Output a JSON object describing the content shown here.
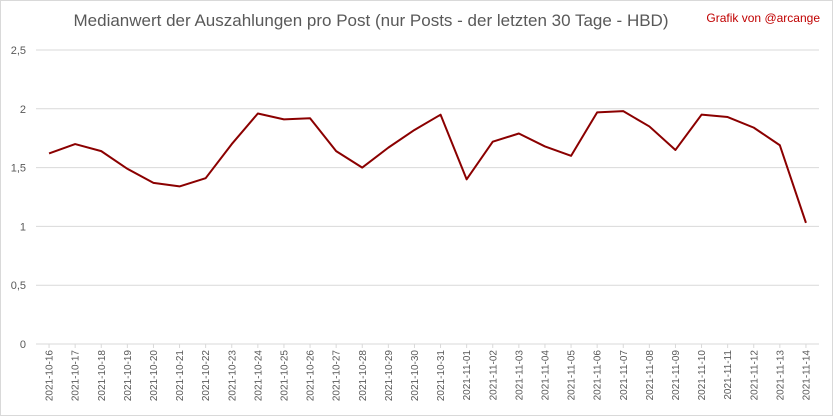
{
  "credit": "Grafik von @arcange",
  "chart_data": {
    "type": "line",
    "title": "Medianwert der Auszahlungen pro Post (nur Posts - der letzten 30 Tage - HBD)",
    "xlabel": "",
    "ylabel": "",
    "ylim": [
      0,
      2.5
    ],
    "yticks": [
      "0",
      "0,5",
      "1",
      "1,5",
      "2",
      "2,5"
    ],
    "ytick_values": [
      0,
      0.5,
      1,
      1.5,
      2,
      2.5
    ],
    "grid": true,
    "line_color": "#8b0000",
    "grid_color": "#d9d9d9",
    "x": [
      "2021-10-16",
      "2021-10-17",
      "2021-10-18",
      "2021-10-19",
      "2021-10-20",
      "2021-10-21",
      "2021-10-22",
      "2021-10-23",
      "2021-10-24",
      "2021-10-25",
      "2021-10-26",
      "2021-10-27",
      "2021-10-28",
      "2021-10-29",
      "2021-10-30",
      "2021-10-31",
      "2021-11-01",
      "2021-11-02",
      "2021-11-03",
      "2021-11-04",
      "2021-11-05",
      "2021-11-06",
      "2021-11-07",
      "2021-11-08",
      "2021-11-09",
      "2021-11-10",
      "2021-11-11",
      "2021-11-12",
      "2021-11-13",
      "2021-11-14"
    ],
    "series": [
      {
        "values": [
          1.62,
          1.7,
          1.64,
          1.49,
          1.37,
          1.34,
          1.41,
          1.7,
          1.96,
          1.91,
          1.92,
          1.64,
          1.5,
          1.67,
          1.82,
          1.95,
          1.4,
          1.72,
          1.79,
          1.68,
          1.6,
          1.97,
          1.98,
          1.85,
          1.65,
          1.95,
          1.93,
          1.84,
          1.69,
          1.03
        ]
      }
    ]
  }
}
